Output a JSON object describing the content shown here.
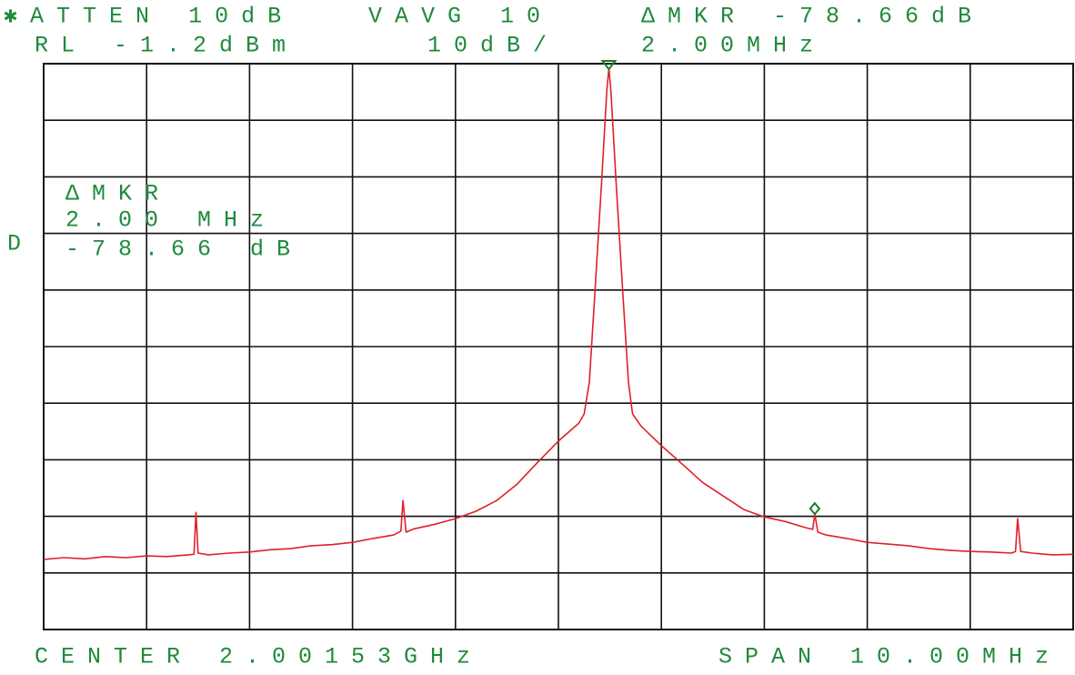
{
  "chart_data": {
    "type": "line",
    "annotations": [
      "✱ATTEN 10dB",
      "VAVG 10",
      "ΔMKR -78.66dB",
      "RL -1.2dBm",
      "10dB/",
      "2.00MHz",
      "ΔMKR",
      "2.00 MHz",
      "-78.66 dB",
      "D",
      "CENTER 2.00153GHz",
      "SPAN 10.00MHz"
    ],
    "x": [
      1996.53,
      1996.73,
      1996.93,
      1997.13,
      1997.33,
      1997.53,
      1997.73,
      1997.93,
      1997.99,
      1998.01,
      1998.03,
      1998.13,
      1998.33,
      1998.53,
      1998.73,
      1998.93,
      1999.13,
      1999.33,
      1999.53,
      1999.73,
      1999.93,
      2000.0,
      2000.02,
      2000.05,
      2000.13,
      2000.33,
      2000.53,
      2000.73,
      2000.93,
      2001.13,
      2001.33,
      2001.53,
      2001.73,
      2001.78,
      2001.83,
      2001.88,
      2001.95,
      2002.0,
      2002.02,
      2002.04,
      2002.09,
      2002.16,
      2002.21,
      2002.25,
      2002.33,
      2002.53,
      2002.73,
      2002.93,
      2003.13,
      2003.33,
      2003.53,
      2003.73,
      2003.93,
      2004.0,
      2004.02,
      2004.05,
      2004.13,
      2004.33,
      2004.53,
      2004.73,
      2004.93,
      2005.13,
      2005.33,
      2005.53,
      2005.73,
      2005.93,
      2005.97,
      2005.99,
      2006.02,
      2006.13,
      2006.33,
      2006.53
    ],
    "series": [
      {
        "color": "#e0202a",
        "values": [
          -88.8,
          -88.5,
          -88.7,
          -88.3,
          -88.5,
          -88.2,
          -88.3,
          -88.0,
          -87.9,
          -80.5,
          -87.7,
          -88.0,
          -87.7,
          -87.5,
          -87.1,
          -86.9,
          -86.4,
          -86.2,
          -85.8,
          -85.1,
          -84.5,
          -83.8,
          -78.4,
          -84.0,
          -83.4,
          -82.6,
          -81.6,
          -80.3,
          -78.4,
          -75.5,
          -71.6,
          -67.9,
          -64.7,
          -63.1,
          -57.5,
          -43.0,
          -22.1,
          -6.0,
          -2.0,
          -6.0,
          -22.1,
          -43.0,
          -57.5,
          -63.1,
          -65.2,
          -68.7,
          -71.9,
          -75.2,
          -77.6,
          -80.0,
          -81.3,
          -82.1,
          -83.2,
          -83.5,
          -80.8,
          -84.0,
          -84.5,
          -85.1,
          -85.8,
          -86.1,
          -86.4,
          -86.9,
          -87.2,
          -87.4,
          -87.5,
          -87.7,
          -87.4,
          -81.6,
          -87.4,
          -87.7,
          -88.0,
          -87.9
        ]
      }
    ],
    "xlim": [
      1996.53,
      2006.53
    ],
    "ylim": [
      -101.2,
      -1.2
    ],
    "grid": true,
    "marker_color": "#1a7a30"
  }
}
